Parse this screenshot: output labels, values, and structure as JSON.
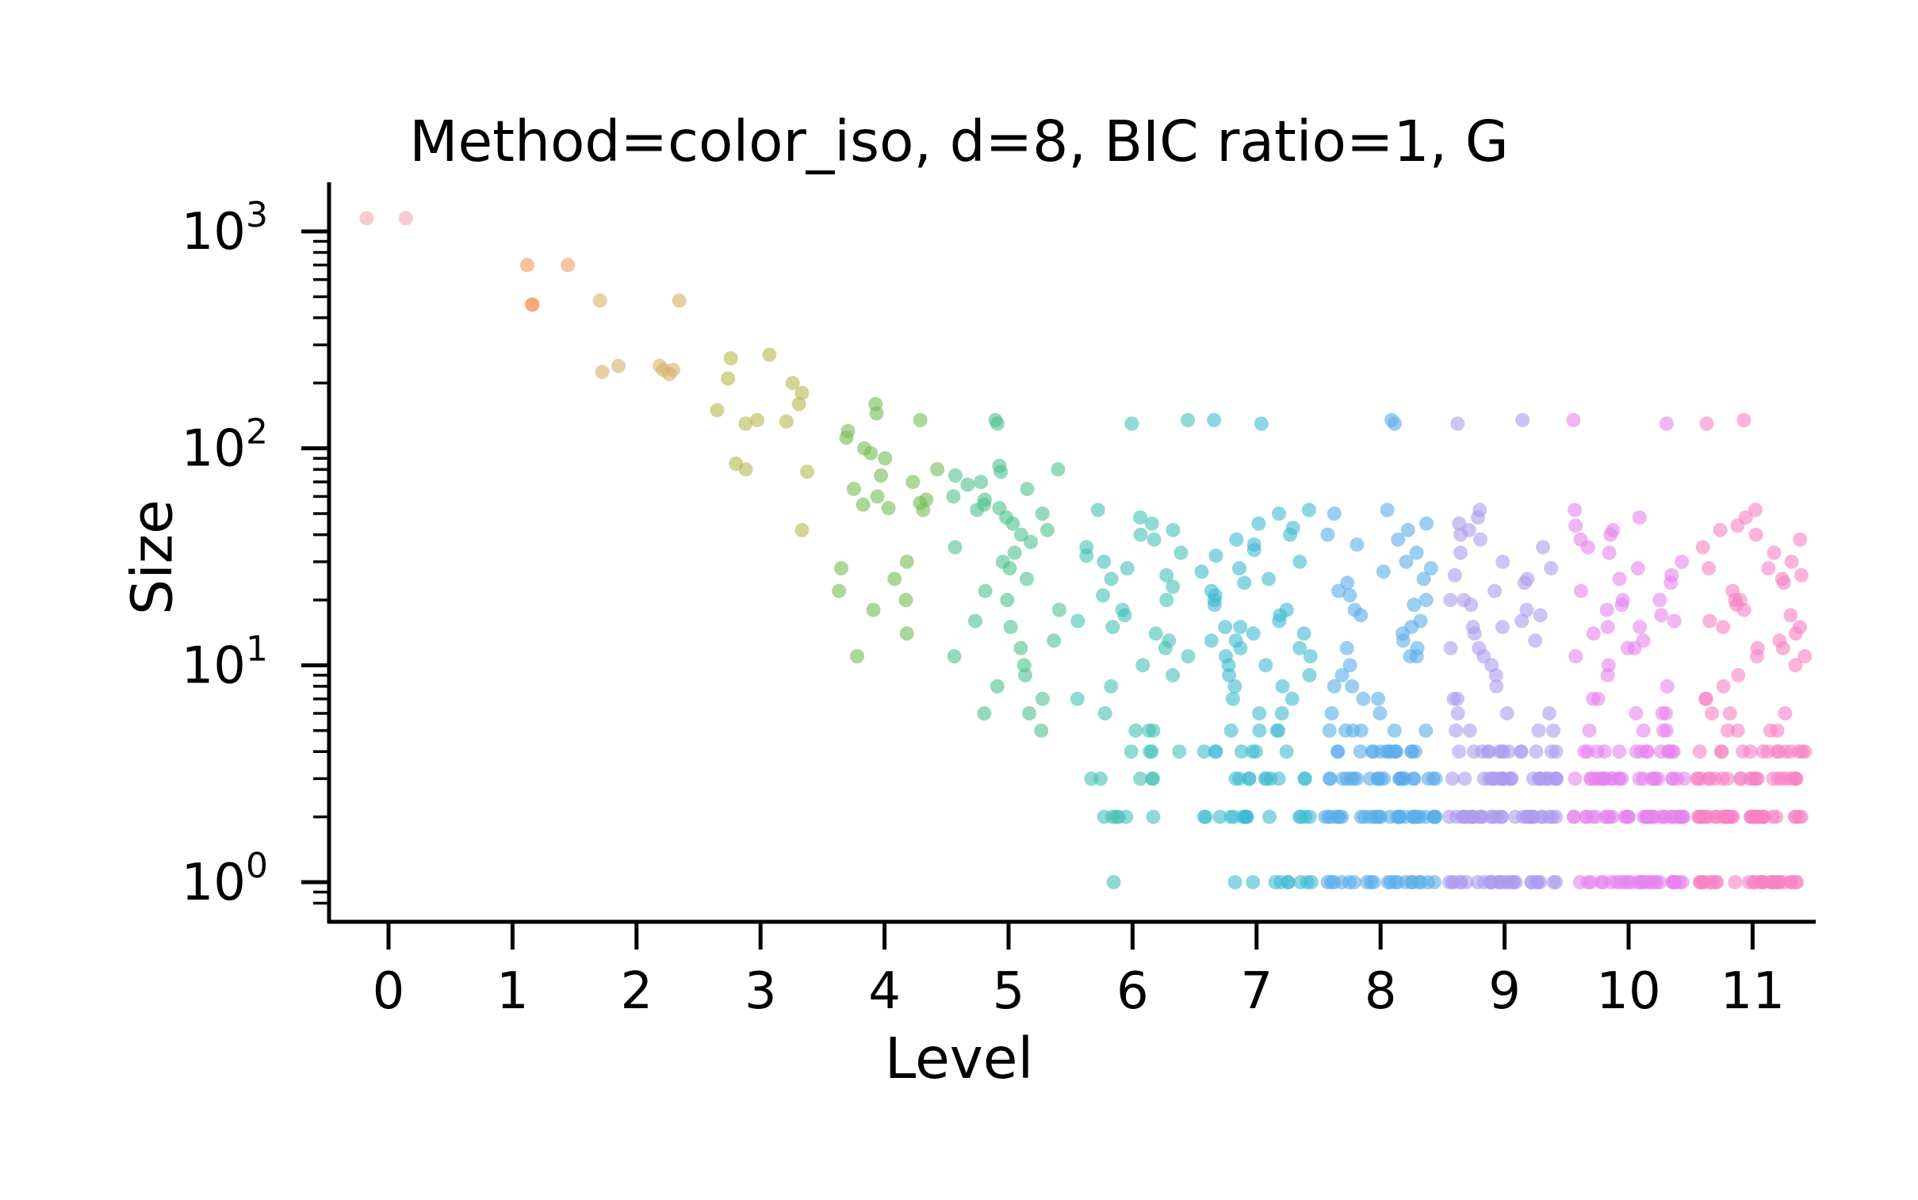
{
  "chart_data": {
    "type": "scatter",
    "title": "Method=color_iso, d=8, BIC ratio=1, G",
    "xlabel": "Level",
    "ylabel": "Size",
    "yscale": "log",
    "ylim": [
      0.8,
      1500
    ],
    "xlim": [
      -0.5,
      11.5
    ],
    "x_ticks": [
      "0",
      "1",
      "2",
      "3",
      "4",
      "5",
      "6",
      "7",
      "8",
      "9",
      "10",
      "11"
    ],
    "y_ticks": [
      {
        "value": 1,
        "base": "10",
        "exp": "0"
      },
      {
        "value": 10,
        "base": "10",
        "exp": "1"
      },
      {
        "value": 100,
        "base": "10",
        "exp": "2"
      },
      {
        "value": 1000,
        "base": "10",
        "exp": "3"
      }
    ],
    "grid": false,
    "jitter_width": 0.45,
    "series": [
      {
        "level": 0,
        "color": "#f7a6b4",
        "values": [
          1150,
          1150
        ]
      },
      {
        "level": 1,
        "color": "#f29a63",
        "values": [
          700,
          700,
          460,
          460
        ]
      },
      {
        "level": 2,
        "color": "#d4b06a",
        "values": [
          480,
          480,
          240,
          230,
          230,
          240,
          220,
          225
        ]
      },
      {
        "level": 3,
        "color": "#b8b84e",
        "values": [
          270,
          260,
          210,
          200,
          180,
          160,
          150,
          135,
          133,
          130,
          85,
          80,
          78,
          42
        ]
      },
      {
        "level": 4,
        "color": "#73bd55",
        "values": [
          160,
          145,
          135,
          120,
          112,
          100,
          95,
          90,
          80,
          75,
          70,
          65,
          60,
          58,
          56,
          55,
          53,
          52,
          30,
          28,
          25,
          22,
          20,
          18,
          14,
          11
        ]
      },
      {
        "level": 5,
        "color": "#4ec28f",
        "values": [
          135,
          130,
          83,
          80,
          78,
          75,
          70,
          68,
          65,
          60,
          58,
          55,
          53,
          52,
          50,
          48,
          45,
          42,
          40,
          37,
          35,
          33,
          30,
          28,
          25,
          22,
          20,
          18,
          16,
          15,
          13,
          12,
          11,
          10,
          9,
          8,
          7,
          6,
          6,
          5
        ]
      },
      {
        "level": 6,
        "color": "#45c2b5",
        "values": [
          135,
          130,
          52,
          48,
          45,
          42,
          40,
          38,
          35,
          33,
          32,
          30,
          28,
          26,
          25,
          23,
          21,
          20,
          18,
          17,
          16,
          15,
          14,
          13,
          12,
          11,
          10,
          9,
          8,
          7,
          6,
          5,
          5,
          5,
          4,
          4,
          4,
          4,
          3,
          3,
          3,
          3,
          3,
          2,
          2,
          2,
          2,
          2,
          2,
          1
        ]
      },
      {
        "level": 7,
        "color": "#3fbad0",
        "values": [
          135,
          130,
          52,
          50,
          45,
          43,
          40,
          38,
          36,
          34,
          32,
          30,
          28,
          27,
          25,
          24,
          22,
          21,
          20,
          19,
          18,
          17,
          16,
          15,
          15,
          14,
          14,
          13,
          13,
          12,
          12,
          11,
          11,
          10,
          10,
          9,
          9,
          8,
          8,
          7,
          7,
          6,
          6,
          5,
          5,
          5,
          5,
          4,
          4,
          4,
          4,
          4,
          4,
          4,
          3,
          3,
          3,
          3,
          3,
          3,
          3,
          3,
          3,
          3,
          2,
          2,
          2,
          2,
          2,
          2,
          2,
          2,
          2,
          2,
          2,
          2,
          2,
          2,
          2,
          1,
          1,
          1,
          1,
          1,
          1,
          1,
          1,
          1
        ]
      },
      {
        "level": 8,
        "color": "#5aaeea",
        "values": [
          135,
          130,
          52,
          50,
          45,
          42,
          40,
          38,
          36,
          33,
          30,
          28,
          27,
          25,
          24,
          22,
          21,
          20,
          19,
          18,
          17,
          16,
          15,
          14,
          13,
          12,
          12,
          11,
          11,
          10,
          9,
          8,
          8,
          7,
          7,
          6,
          6,
          5,
          5,
          5,
          5,
          5,
          5,
          4,
          4,
          4,
          4,
          4,
          4,
          4,
          4,
          4,
          4,
          4,
          4,
          4,
          4,
          4,
          3,
          3,
          3,
          3,
          3,
          3,
          3,
          3,
          3,
          3,
          3,
          3,
          3,
          3,
          3,
          3,
          3,
          3,
          3,
          3,
          3,
          3,
          2,
          2,
          2,
          2,
          2,
          2,
          2,
          2,
          2,
          2,
          2,
          2,
          2,
          2,
          2,
          2,
          2,
          2,
          2,
          2,
          2,
          2,
          2,
          2,
          2,
          2,
          2,
          2,
          2,
          2,
          1,
          1,
          1,
          1,
          1,
          1,
          1,
          1,
          1,
          1,
          1,
          1,
          1,
          1,
          1,
          1,
          1,
          1,
          1,
          1
        ]
      },
      {
        "level": 9,
        "color": "#ad9bee",
        "values": [
          135,
          130,
          52,
          48,
          45,
          42,
          40,
          38,
          35,
          33,
          30,
          28,
          26,
          25,
          24,
          22,
          20,
          20,
          19,
          18,
          17,
          16,
          15,
          15,
          14,
          13,
          12,
          12,
          11,
          10,
          9,
          8,
          7,
          7,
          6,
          6,
          6,
          5,
          5,
          5,
          5,
          4,
          4,
          4,
          4,
          4,
          4,
          4,
          4,
          4,
          4,
          4,
          4,
          4,
          4,
          3,
          3,
          3,
          3,
          3,
          3,
          3,
          3,
          3,
          3,
          3,
          3,
          3,
          3,
          3,
          3,
          3,
          3,
          3,
          3,
          3,
          3,
          3,
          3,
          2,
          2,
          2,
          2,
          2,
          2,
          2,
          2,
          2,
          2,
          2,
          2,
          2,
          2,
          2,
          2,
          2,
          2,
          2,
          2,
          2,
          2,
          2,
          2,
          2,
          2,
          2,
          2,
          2,
          2,
          1,
          1,
          1,
          1,
          1,
          1,
          1,
          1,
          1,
          1,
          1,
          1,
          1,
          1,
          1,
          1,
          1,
          1,
          1,
          1,
          1,
          1,
          1,
          1,
          1,
          1
        ]
      },
      {
        "level": 10,
        "color": "#e684ee",
        "values": [
          135,
          130,
          52,
          48,
          44,
          42,
          40,
          38,
          35,
          33,
          30,
          28,
          26,
          25,
          24,
          22,
          20,
          20,
          19,
          18,
          17,
          16,
          15,
          15,
          14,
          13,
          12,
          12,
          11,
          10,
          9,
          8,
          7,
          7,
          6,
          6,
          6,
          5,
          5,
          5,
          5,
          4,
          4,
          4,
          4,
          4,
          4,
          4,
          4,
          4,
          4,
          4,
          4,
          4,
          4,
          3,
          3,
          3,
          3,
          3,
          3,
          3,
          3,
          3,
          3,
          3,
          3,
          3,
          3,
          3,
          3,
          3,
          3,
          3,
          3,
          3,
          3,
          3,
          3,
          2,
          2,
          2,
          2,
          2,
          2,
          2,
          2,
          2,
          2,
          2,
          2,
          2,
          2,
          2,
          2,
          2,
          2,
          2,
          2,
          2,
          2,
          2,
          2,
          2,
          2,
          2,
          2,
          2,
          2,
          2,
          2,
          2,
          1,
          1,
          1,
          1,
          1,
          1,
          1,
          1,
          1,
          1,
          1,
          1,
          1,
          1,
          1,
          1,
          1,
          1,
          1,
          1,
          1,
          1,
          1,
          1,
          1,
          1
        ]
      },
      {
        "level": 11,
        "color": "#f782c4",
        "values": [
          135,
          130,
          52,
          48,
          44,
          42,
          40,
          38,
          35,
          33,
          30,
          28,
          28,
          26,
          25,
          24,
          22,
          20,
          20,
          19,
          18,
          17,
          16,
          15,
          15,
          14,
          13,
          12,
          12,
          11,
          11,
          10,
          9,
          8,
          7,
          7,
          6,
          6,
          6,
          5,
          5,
          5,
          5,
          4,
          4,
          4,
          4,
          4,
          4,
          4,
          4,
          4,
          4,
          4,
          4,
          4,
          4,
          3,
          3,
          3,
          3,
          3,
          3,
          3,
          3,
          3,
          3,
          3,
          3,
          3,
          3,
          3,
          3,
          3,
          3,
          3,
          3,
          3,
          3,
          3,
          2,
          2,
          2,
          2,
          2,
          2,
          2,
          2,
          2,
          2,
          2,
          2,
          2,
          2,
          2,
          2,
          2,
          2,
          2,
          2,
          2,
          2,
          2,
          2,
          2,
          2,
          2,
          2,
          2,
          2,
          2,
          2,
          2,
          1,
          1,
          1,
          1,
          1,
          1,
          1,
          1,
          1,
          1,
          1,
          1,
          1,
          1,
          1,
          1,
          1,
          1,
          1,
          1,
          1,
          1,
          1,
          1,
          1,
          1,
          1,
          1
        ]
      }
    ]
  }
}
